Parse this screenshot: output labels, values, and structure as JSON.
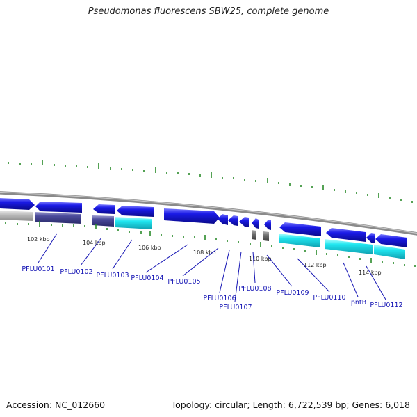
{
  "title": "Pseudomonas fluorescens SBW25, complete genome",
  "footer": {
    "accession": "Accession: NC_012660",
    "summary": "Topology: circular; Length: 6,722,539 bp; Genes: 6,018"
  },
  "colors": {
    "gene_blue": "#1a1ae6",
    "cds_navy": "#4a4a9a",
    "cds_cyan": "#20e6f0",
    "cds_gray": "#b8b8b8",
    "backbone": "#8a8a8a",
    "tick_green": "#2a8a2a",
    "label_blue": "#1414b4"
  },
  "kbp_labels": [
    "102 kbp",
    "104 kbp",
    "106 kbp",
    "108 kbp",
    "110 kbp",
    "112 kbp",
    "114 kbp"
  ],
  "genes": [
    "PFLU0101",
    "PFLU0102",
    "PFLU0103",
    "PFLU0104",
    "PFLU0105",
    "PFLU0106",
    "PFLU0107",
    "PFLU0108",
    "PFLU0109",
    "PFLU0110",
    "pntB",
    "PFLU0112"
  ]
}
